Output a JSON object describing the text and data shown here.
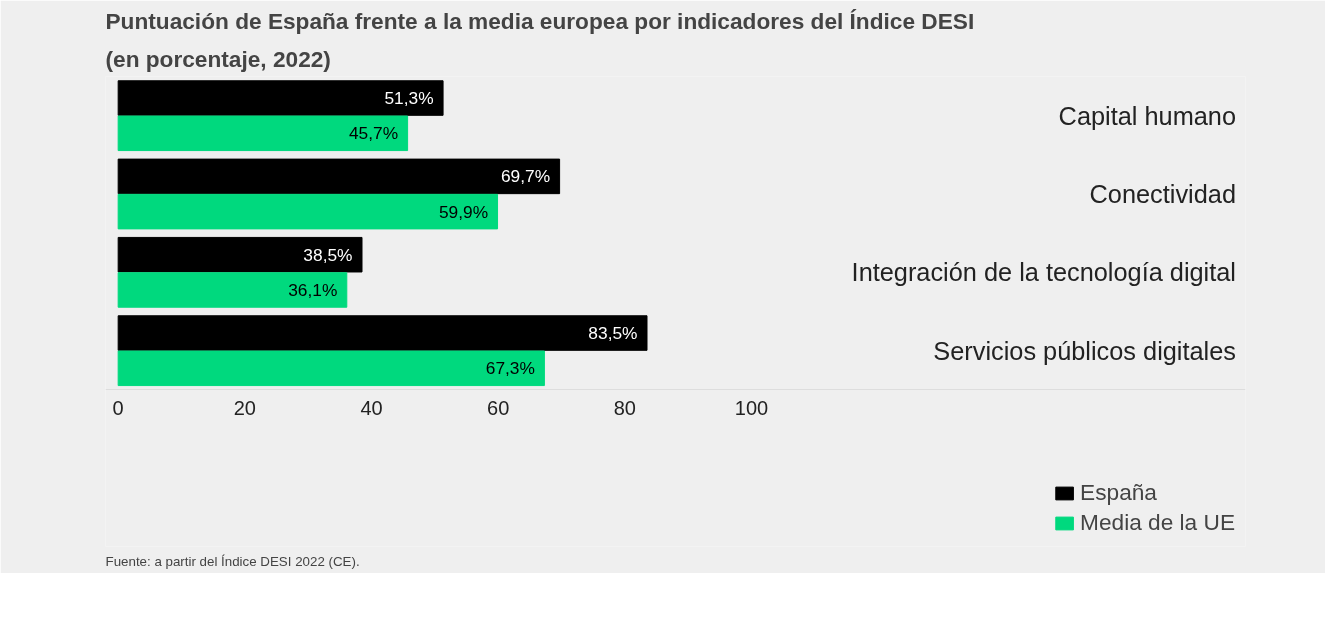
{
  "chart_data": {
    "type": "bar",
    "orientation": "horizontal",
    "title": "Puntuación de España frente a la media europea por indicadores del Índice DESI",
    "subtitle": "(en porcentaje, 2022)",
    "categories": [
      "Capital humano",
      "Conectividad",
      "Integración de la tecnología digital",
      "Servicios públicos digitales"
    ],
    "series": [
      {
        "name": "España",
        "color": "#000000",
        "values": [
          51.3,
          69.7,
          38.5,
          83.5
        ],
        "value_labels": [
          "51,3%",
          "69,7%",
          "38,5%",
          "83,5%"
        ]
      },
      {
        "name": "Media de la UE",
        "color": "#00d97e",
        "values": [
          45.7,
          59.9,
          36.1,
          67.3
        ],
        "value_labels": [
          "45,7%",
          "59,9%",
          "36,1%",
          "67,3%"
        ]
      }
    ],
    "xlim": [
      -2,
      178
    ],
    "xticks": [
      0,
      20,
      40,
      60,
      80,
      100
    ],
    "grid": false,
    "legend": "bottom right",
    "annotations": [
      "Fuente: a partir del Índice DESI 2022 (CE)."
    ]
  }
}
